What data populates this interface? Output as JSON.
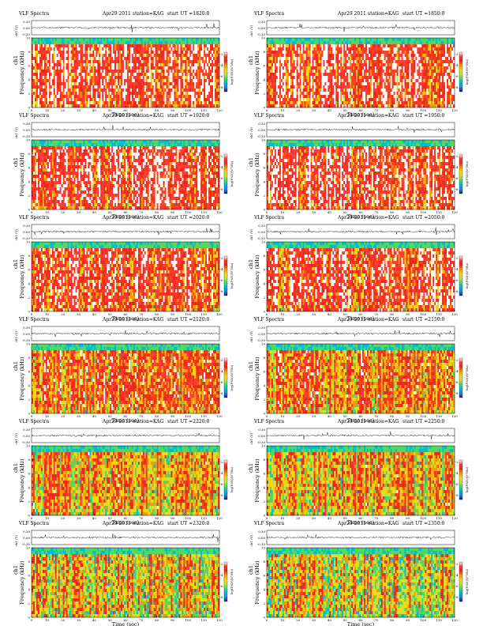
{
  "common": {
    "title": "VLF Spectra",
    "date": "Apr29 2011",
    "station": "station=KAG",
    "start_prefix": "start  UT =",
    "ch_label": "ch1 (V)",
    "ch_ticks": [
      "0.30",
      "0.00",
      "-0.30"
    ],
    "freq_label": "Frequency  (kHz)",
    "ch_side": "ch1",
    "time_label": "Time  (sec)",
    "colorbar_label": "log(PSD)(V²/Hz)",
    "colorbar_ticks": [
      "-2",
      "-4",
      "-6",
      "-8"
    ],
    "colormap": [
      "#1a237e",
      "#1e88e5",
      "#00bcd4",
      "#4cd964",
      "#c6e53a",
      "#f5d90a",
      "#f59a0a",
      "#e8291c",
      "#ff3b30",
      "#ffffff"
    ]
  },
  "chart_data": [
    {
      "type": "heatmap",
      "start_ut": "1820:0",
      "x_range": [
        0,
        120
      ],
      "y_range": [
        0,
        10
      ],
      "x_ticks": [
        0,
        10,
        20,
        30,
        40,
        50,
        60,
        70,
        80,
        90,
        100,
        110,
        120
      ],
      "y_ticks": [
        0,
        2,
        4,
        6,
        8,
        10
      ],
      "intensity_bias": 0.82
    },
    {
      "type": "heatmap",
      "start_ut": "1850:0",
      "x_range": [
        0,
        120
      ],
      "y_range": [
        0,
        10
      ],
      "x_ticks": [
        0,
        10,
        20,
        30,
        40,
        50,
        60,
        70,
        80,
        90,
        100,
        110,
        120
      ],
      "y_ticks": [
        0,
        2,
        4,
        6,
        8,
        10
      ],
      "intensity_bias": 0.82
    },
    {
      "type": "heatmap",
      "start_ut": "1920:0",
      "x_range": [
        0,
        120
      ],
      "y_range": [
        0,
        10
      ],
      "x_ticks": [
        0,
        10,
        20,
        30,
        40,
        50,
        60,
        70,
        80,
        90,
        100,
        110,
        120
      ],
      "y_ticks": [
        0,
        2,
        4,
        6,
        8,
        10
      ],
      "intensity_bias": 0.84
    },
    {
      "type": "heatmap",
      "start_ut": "1950:0",
      "x_range": [
        0,
        120
      ],
      "y_range": [
        0,
        10
      ],
      "x_ticks": [
        0,
        10,
        20,
        30,
        40,
        50,
        60,
        70,
        80,
        90,
        100,
        110,
        120
      ],
      "y_ticks": [
        0,
        2,
        4,
        6,
        8,
        10
      ],
      "intensity_bias": 0.84
    },
    {
      "type": "heatmap",
      "start_ut": "2020:0",
      "x_range": [
        0,
        120
      ],
      "y_range": [
        0,
        10
      ],
      "x_ticks": [
        0,
        10,
        20,
        30,
        40,
        50,
        60,
        70,
        80,
        90,
        100,
        110,
        120
      ],
      "y_ticks": [
        0,
        2,
        4,
        6,
        8,
        10
      ],
      "intensity_bias": 0.78
    },
    {
      "type": "heatmap",
      "start_ut": "2050:0",
      "x_range": [
        0,
        120
      ],
      "y_range": [
        0,
        10
      ],
      "x_ticks": [
        0,
        10,
        20,
        30,
        40,
        50,
        60,
        70,
        80,
        90,
        100,
        110,
        120
      ],
      "y_ticks": [
        0,
        2,
        4,
        6,
        8,
        10
      ],
      "intensity_bias": 0.78
    },
    {
      "type": "heatmap",
      "start_ut": "2120:0",
      "x_range": [
        0,
        120
      ],
      "y_range": [
        0,
        10
      ],
      "x_ticks": [
        0,
        10,
        20,
        30,
        40,
        50,
        60,
        70,
        80,
        90,
        100,
        110,
        120
      ],
      "y_ticks": [
        0,
        2,
        4,
        6,
        8,
        10
      ],
      "intensity_bias": 0.66
    },
    {
      "type": "heatmap",
      "start_ut": "2150:0",
      "x_range": [
        0,
        120
      ],
      "y_range": [
        0,
        10
      ],
      "x_ticks": [
        0,
        10,
        20,
        30,
        40,
        50,
        60,
        70,
        80,
        90,
        100,
        110,
        120
      ],
      "y_ticks": [
        0,
        2,
        4,
        6,
        8,
        10
      ],
      "intensity_bias": 0.64
    },
    {
      "type": "heatmap",
      "start_ut": "2220:0",
      "x_range": [
        0,
        120
      ],
      "y_range": [
        0,
        10
      ],
      "x_ticks": [
        0,
        10,
        20,
        30,
        40,
        50,
        60,
        70,
        80,
        90,
        100,
        110,
        120
      ],
      "y_ticks": [
        0,
        2,
        4,
        6,
        8,
        10
      ],
      "intensity_bias": 0.55
    },
    {
      "type": "heatmap",
      "start_ut": "2250:0",
      "x_range": [
        0,
        120
      ],
      "y_range": [
        0,
        10
      ],
      "x_ticks": [
        0,
        10,
        20,
        30,
        40,
        50,
        60,
        70,
        80,
        90,
        100,
        110,
        120
      ],
      "y_ticks": [
        0,
        2,
        4,
        6,
        8,
        10
      ],
      "intensity_bias": 0.52
    },
    {
      "type": "heatmap",
      "start_ut": "2320:0",
      "x_range": [
        0,
        120
      ],
      "y_range": [
        0,
        10
      ],
      "x_ticks": [
        0,
        10,
        20,
        30,
        40,
        50,
        60,
        70,
        80,
        90,
        100,
        110,
        120
      ],
      "y_ticks": [
        0,
        2,
        4,
        6,
        8,
        10
      ],
      "intensity_bias": 0.46
    },
    {
      "type": "heatmap",
      "start_ut": "2350:0",
      "x_range": [
        0,
        120
      ],
      "y_range": [
        0,
        10
      ],
      "x_ticks": [
        0,
        10,
        20,
        30,
        40,
        50,
        60,
        70,
        80,
        90,
        100,
        110,
        120
      ],
      "y_ticks": [
        0,
        2,
        4,
        6,
        8,
        10
      ],
      "intensity_bias": 0.44
    }
  ]
}
